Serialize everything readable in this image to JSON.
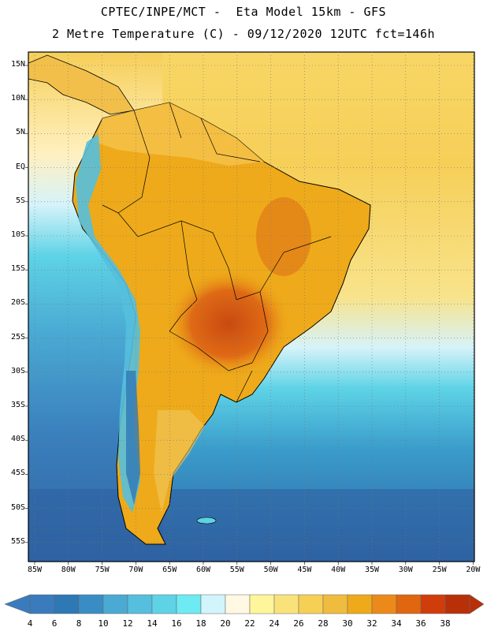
{
  "header": {
    "line1": "CPTEC/INPE/MCT -  Eta Model 15km - GFS",
    "line2": "2 Metre Temperature (C) - 09/12/2020 12UTC fct=146h"
  },
  "axes": {
    "lat_labels": [
      "15N",
      "10N",
      "5N",
      "EQ",
      "5S",
      "10S",
      "15S",
      "20S",
      "25S",
      "30S",
      "35S",
      "40S",
      "45S",
      "50S",
      "55S"
    ],
    "lon_labels": [
      "85W",
      "80W",
      "75W",
      "70W",
      "65W",
      "60W",
      "55W",
      "50W",
      "45W",
      "40W",
      "35W",
      "30W",
      "25W",
      "20W"
    ]
  },
  "legend": {
    "labels": [
      "4",
      "6",
      "8",
      "10",
      "12",
      "14",
      "16",
      "18",
      "20",
      "22",
      "24",
      "26",
      "28",
      "30",
      "32",
      "34",
      "36",
      "38"
    ],
    "colors": [
      "#3a7bbd",
      "#2f78b6",
      "#3a8dc4",
      "#4aaad3",
      "#55bfdd",
      "#5ed3e6",
      "#6eeaf2",
      "#d2f4fb",
      "#fff8e3",
      "#fff59a",
      "#fae27a",
      "#f5d055",
      "#f0bc3e",
      "#eeaa1a",
      "#eb8a1a",
      "#e0660f",
      "#cf3d0b",
      "#b83008"
    ]
  },
  "colors": {
    "ocean_south": "#2f66a6",
    "ocean_mid": "#55bfdd",
    "ocean_warm": "#f5d055",
    "land_hot": "#eeaa1a",
    "land_very_hot": "#cf5a12",
    "andes_cold": "#55bfdd"
  }
}
